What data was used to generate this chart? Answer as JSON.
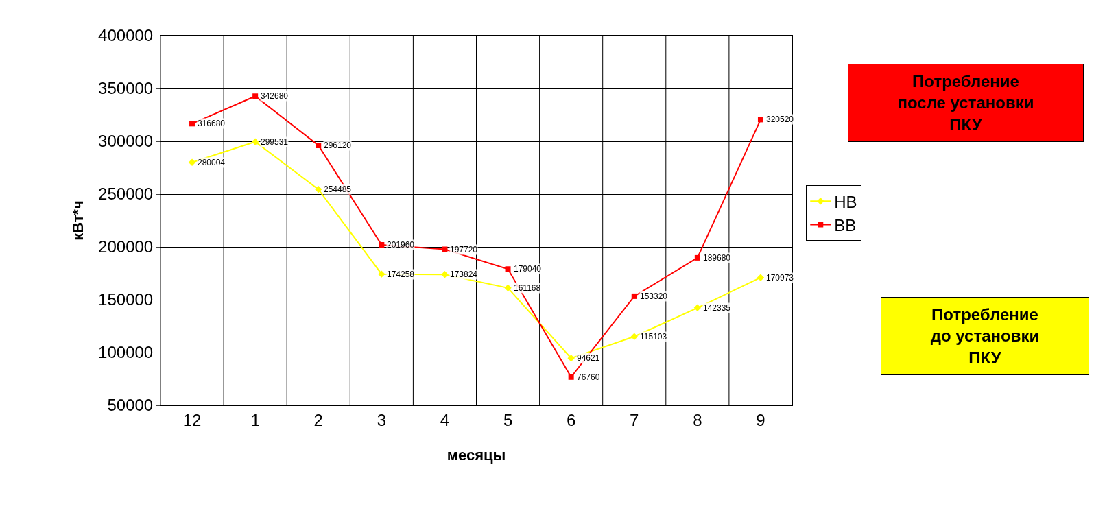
{
  "chart_data": {
    "type": "line",
    "xlabel": "месяцы",
    "ylabel": "кВт*ч",
    "categories": [
      "12",
      "1",
      "2",
      "3",
      "4",
      "5",
      "6",
      "7",
      "8",
      "9"
    ],
    "series": [
      {
        "name": "НВ",
        "color": "#ffff00",
        "marker": "diamond",
        "values": [
          280004,
          299531,
          254485,
          174258,
          173824,
          161168,
          94621,
          115103,
          142335,
          170973
        ]
      },
      {
        "name": "ВВ",
        "color": "#ff0000",
        "marker": "square",
        "values": [
          316680,
          342680,
          296120,
          201960,
          197720,
          179040,
          76760,
          153320,
          189680,
          320520
        ]
      }
    ],
    "ylim": [
      50000,
      400000
    ],
    "yticks": [
      50000,
      100000,
      150000,
      200000,
      250000,
      300000,
      350000,
      400000
    ],
    "grid": true,
    "legend": "right",
    "data_labels": true,
    "annotations": [
      "Потребление после установки ПКУ",
      "Потребление до установки ПКУ"
    ]
  }
}
